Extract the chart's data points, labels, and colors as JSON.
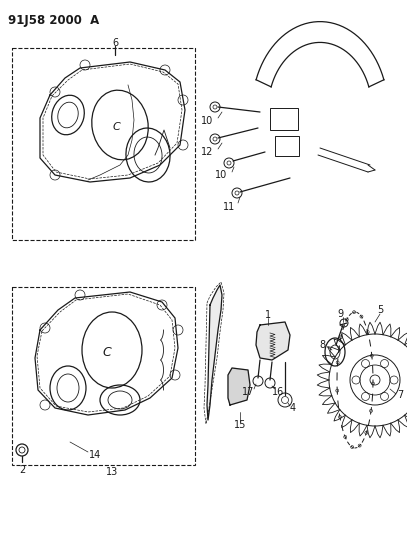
{
  "title": "91J58 2000  A",
  "bg_color": "#ffffff",
  "line_color": "#1a1a1a",
  "fig_width": 4.07,
  "fig_height": 5.33,
  "dpi": 100,
  "title_fontsize": 8.5,
  "label_fontsize": 7.0
}
